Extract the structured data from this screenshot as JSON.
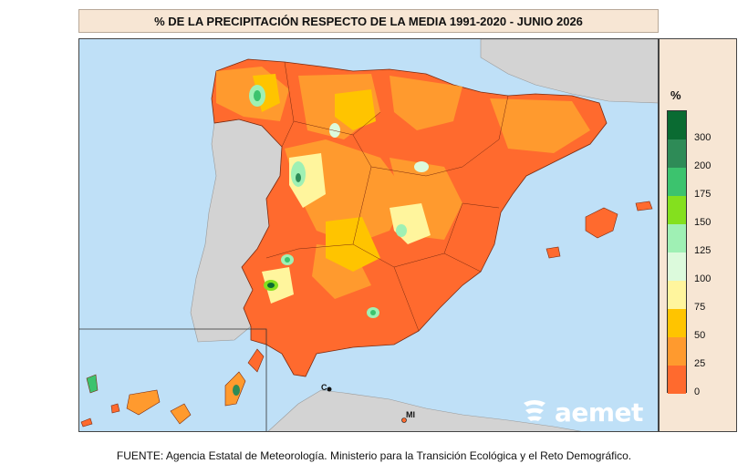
{
  "title": "% DE LA PRECIPITACIÓN RESPECTO DE LA MEDIA 1991-2020 - JUNIO 2026",
  "legend": {
    "unit": "%",
    "ticks": [
      "300",
      "200",
      "175",
      "150",
      "125",
      "100",
      "75",
      "50",
      "25",
      "0"
    ],
    "colors": [
      "#0a6b32",
      "#2e8b57",
      "#3cc36e",
      "#84e01e",
      "#9ff0b4",
      "#dcfadc",
      "#fff59d",
      "#ffc400",
      "#ff9a2e",
      "#ff6a2e"
    ]
  },
  "cities": {
    "ceuta": "C",
    "melilla": "MI"
  },
  "logo_text": "aemet",
  "source": "FUENTE: Agencia Estatal de Meteorología. Ministerio para la Transición Ecológica y el Reto Demográfico."
}
